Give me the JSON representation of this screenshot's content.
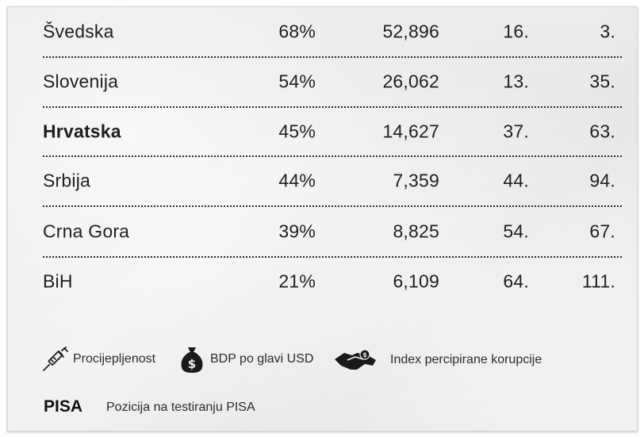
{
  "rows": [
    {
      "country": "Švedska",
      "vaccination": "68%",
      "gdp": "52,896",
      "corruption": "16.",
      "pisa": "3.",
      "bold": false
    },
    {
      "country": "Slovenija",
      "vaccination": "54%",
      "gdp": "26,062",
      "corruption": "13.",
      "pisa": "35.",
      "bold": false
    },
    {
      "country": "Hrvatska",
      "vaccination": "45%",
      "gdp": "14,627",
      "corruption": "37.",
      "pisa": "63.",
      "bold": true
    },
    {
      "country": "Srbija",
      "vaccination": "44%",
      "gdp": "7,359",
      "corruption": "44.",
      "pisa": "94.",
      "bold": false
    },
    {
      "country": "Crna Gora",
      "vaccination": "39%",
      "gdp": "8,825",
      "corruption": "54.",
      "pisa": "67.",
      "bold": false
    },
    {
      "country": "BiH",
      "vaccination": "21%",
      "gdp": "6,109",
      "corruption": "64.",
      "pisa": "111.",
      "bold": false
    }
  ],
  "legend": {
    "vaccination": {
      "icon": "syringe-icon",
      "label": "Procijepljenost"
    },
    "gdp": {
      "icon": "money-bag-icon",
      "label": "BDP po glavi USD"
    },
    "corruption": {
      "icon": "handshake-money-icon",
      "label": "Index percipirane korupcije"
    },
    "pisa": {
      "tag": "PISA",
      "label": "Pozicija na testiranju PISA"
    }
  },
  "colors": {
    "text": "#1f1f1f",
    "background": "#efefef",
    "divider": "#2a2a2a"
  }
}
